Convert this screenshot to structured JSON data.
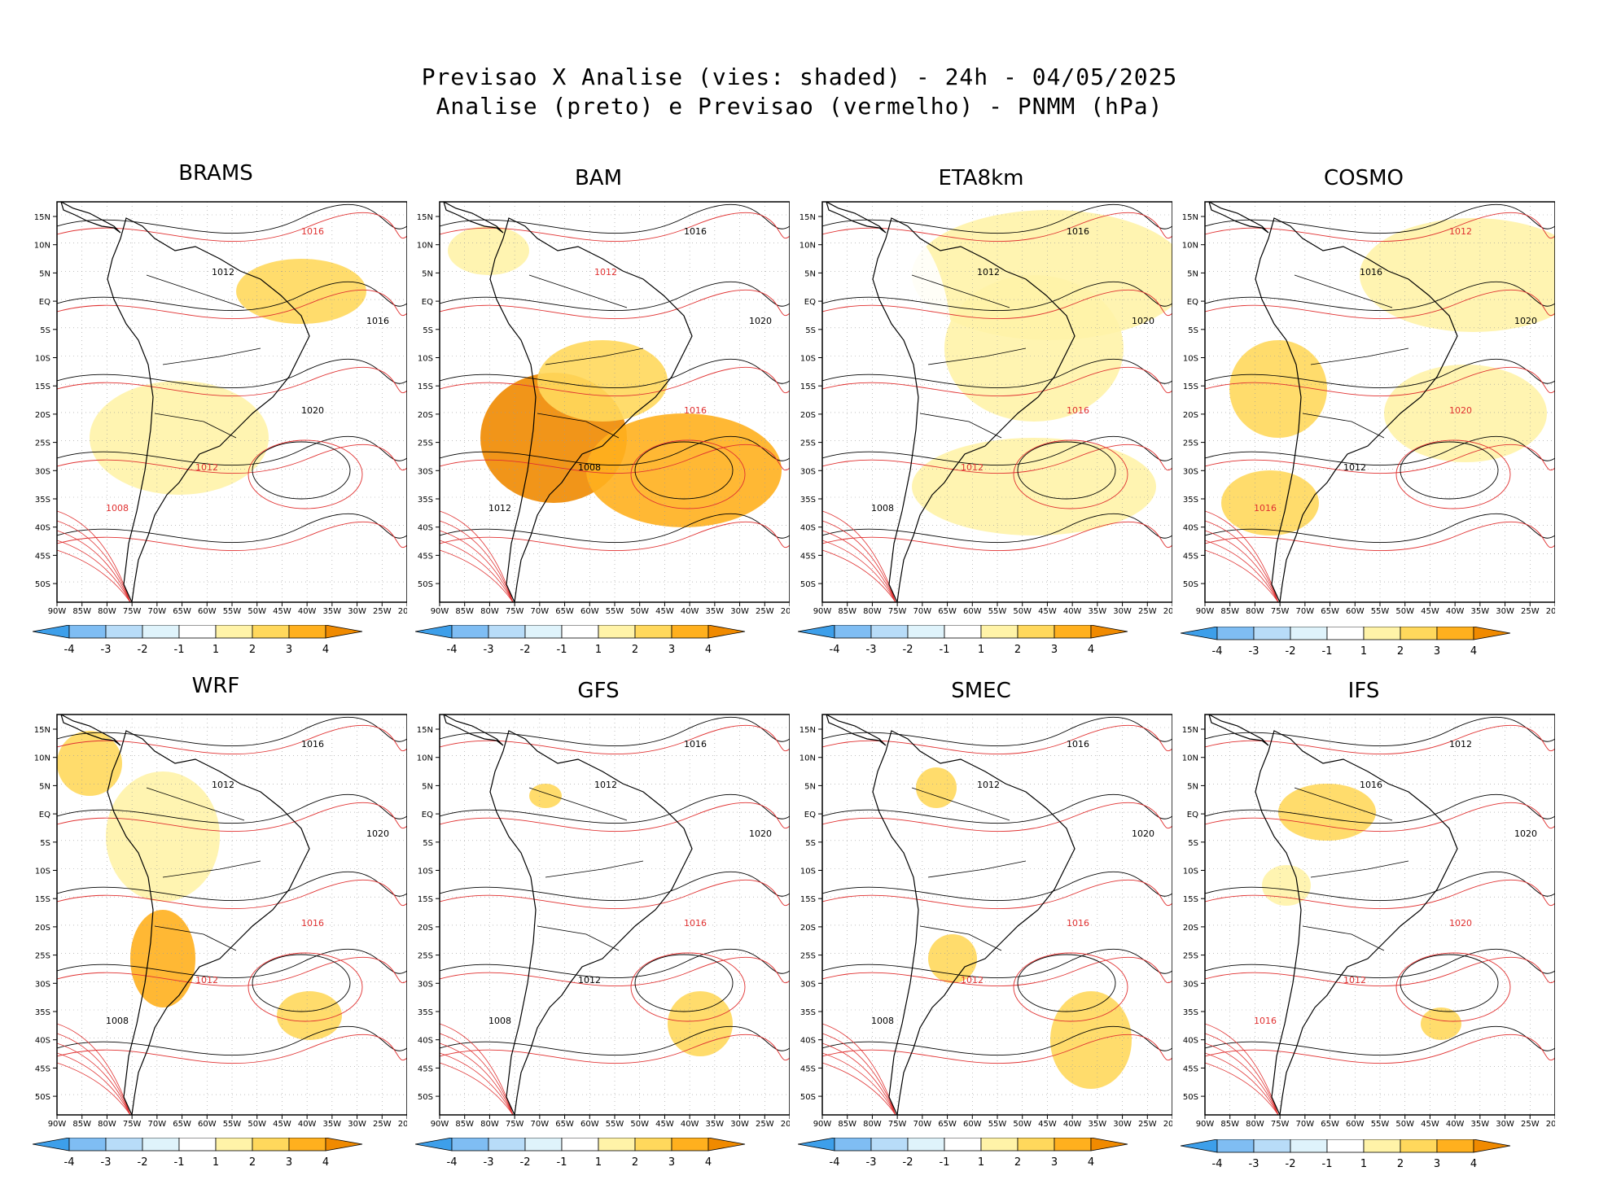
{
  "header": {
    "title_line1": "Previsao X Analise (vies: shaded) - 24h - 04/05/2025",
    "title_line2": "Analise (preto) e Previsao (vermelho) - PNMM (hPa)"
  },
  "axes": {
    "lon_labels": [
      "90W",
      "85W",
      "80W",
      "75W",
      "70W",
      "65W",
      "60W",
      "55W",
      "50W",
      "45W",
      "40W",
      "35W",
      "30W",
      "25W",
      "20W"
    ],
    "lat_labels": [
      "15N",
      "10N",
      "5N",
      "EQ",
      "5S",
      "10S",
      "15S",
      "20S",
      "25S",
      "30S",
      "35S",
      "40S",
      "45S",
      "50S"
    ]
  },
  "colorbar": {
    "labels": [
      "-4",
      "-3",
      "-2",
      "-1",
      "1",
      "2",
      "3",
      "4"
    ],
    "colors": [
      "#3d9fea",
      "#7fbdf3",
      "#b8dcf8",
      "#dff3fb",
      "#ffffff",
      "#fff3a8",
      "#ffd85c",
      "#ffb01e",
      "#f08a00"
    ]
  },
  "colors": {
    "analysis": "#000000",
    "forecast": "#e03030",
    "grid": "#999999"
  },
  "panels": [
    {
      "name": "BRAMS",
      "contours": [
        {
          "t": "1016",
          "c": "f"
        },
        {
          "t": "1012",
          "c": "a"
        },
        {
          "t": "1016",
          "c": "a"
        },
        {
          "t": "1020",
          "c": "a"
        },
        {
          "t": "1008",
          "c": "f"
        },
        {
          "t": "1012",
          "c": "f"
        }
      ]
    },
    {
      "name": "BAM",
      "contours": [
        {
          "t": "1016",
          "c": "a"
        },
        {
          "t": "1012",
          "c": "f"
        },
        {
          "t": "1020",
          "c": "a"
        },
        {
          "t": "1016",
          "c": "f"
        },
        {
          "t": "1012",
          "c": "a"
        },
        {
          "t": "1008",
          "c": "a"
        }
      ]
    },
    {
      "name": "ETA8km",
      "contours": [
        {
          "t": "1016",
          "c": "a"
        },
        {
          "t": "1012",
          "c": "a"
        },
        {
          "t": "1020",
          "c": "a"
        },
        {
          "t": "1016",
          "c": "f"
        },
        {
          "t": "1008",
          "c": "a"
        },
        {
          "t": "1012",
          "c": "f"
        }
      ]
    },
    {
      "name": "COSMO",
      "contours": [
        {
          "t": "1012",
          "c": "f"
        },
        {
          "t": "1016",
          "c": "a"
        },
        {
          "t": "1020",
          "c": "a"
        },
        {
          "t": "1020",
          "c": "f"
        },
        {
          "t": "1016",
          "c": "f"
        },
        {
          "t": "1012",
          "c": "a"
        }
      ]
    },
    {
      "name": "WRF",
      "contours": [
        {
          "t": "1016",
          "c": "a"
        },
        {
          "t": "1012",
          "c": "a"
        },
        {
          "t": "1020",
          "c": "a"
        },
        {
          "t": "1016",
          "c": "f"
        },
        {
          "t": "1008",
          "c": "a"
        },
        {
          "t": "1012",
          "c": "f"
        }
      ]
    },
    {
      "name": "GFS",
      "contours": [
        {
          "t": "1016",
          "c": "a"
        },
        {
          "t": "1012",
          "c": "a"
        },
        {
          "t": "1020",
          "c": "a"
        },
        {
          "t": "1016",
          "c": "f"
        },
        {
          "t": "1008",
          "c": "a"
        },
        {
          "t": "1012",
          "c": "a"
        }
      ]
    },
    {
      "name": "SMEC",
      "contours": [
        {
          "t": "1016",
          "c": "a"
        },
        {
          "t": "1012",
          "c": "a"
        },
        {
          "t": "1020",
          "c": "a"
        },
        {
          "t": "1016",
          "c": "f"
        },
        {
          "t": "1008",
          "c": "a"
        },
        {
          "t": "1012",
          "c": "f"
        }
      ]
    },
    {
      "name": "IFS",
      "contours": [
        {
          "t": "1012",
          "c": "a"
        },
        {
          "t": "1016",
          "c": "a"
        },
        {
          "t": "1020",
          "c": "a"
        },
        {
          "t": "1020",
          "c": "f"
        },
        {
          "t": "1016",
          "c": "f"
        },
        {
          "t": "1012",
          "c": "f"
        }
      ]
    }
  ]
}
